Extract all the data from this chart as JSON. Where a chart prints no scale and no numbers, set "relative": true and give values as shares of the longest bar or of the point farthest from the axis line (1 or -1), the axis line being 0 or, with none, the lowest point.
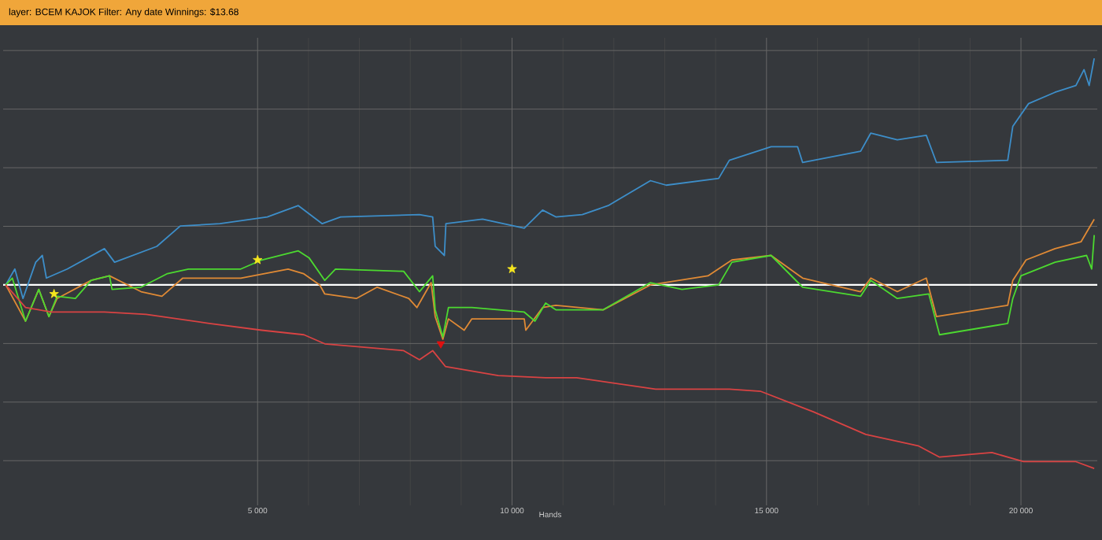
{
  "chart_data": {
    "type": "line",
    "title": "layer: BCEM KAJOK Filter: Any date Winnings: $13.68",
    "xlabel": "Hands",
    "relative": true,
    "grid": true,
    "xlim": [
      0,
      21500
    ],
    "xticks": [
      {
        "value": 5000,
        "label": "5 000"
      },
      {
        "value": 10000,
        "label": "10 000"
      },
      {
        "value": 15000,
        "label": "15 000"
      },
      {
        "value": 20000,
        "label": "20 000"
      }
    ],
    "ref_lines": [
      {
        "axis": "y",
        "value": 0,
        "color": "#ffffff"
      }
    ],
    "series": [
      {
        "color": "#3d8ec9",
        "x": [
          50,
          230,
          390,
          640,
          770,
          850,
          1260,
          1990,
          2190,
          3020,
          3480,
          4260,
          5190,
          5800,
          6270,
          6630,
          8180,
          8440,
          8490,
          8670,
          8700,
          9420,
          10240,
          10600,
          10860,
          11380,
          11890,
          12720,
          13030,
          14060,
          14270,
          15090,
          15610,
          15710,
          16850,
          17050,
          17570,
          18140,
          18340,
          19740,
          19840,
          20150,
          20670,
          21080,
          21240,
          21340,
          21440
        ],
        "values": [
          0,
          0.07,
          -0.06,
          0.1,
          0.13,
          0.03,
          0.07,
          0.16,
          0.1,
          0.17,
          0.26,
          0.27,
          0.3,
          0.35,
          0.27,
          0.3,
          0.31,
          0.3,
          0.17,
          0.13,
          0.27,
          0.29,
          0.25,
          0.33,
          0.3,
          0.31,
          0.35,
          0.46,
          0.44,
          0.47,
          0.55,
          0.61,
          0.61,
          0.54,
          0.59,
          0.67,
          0.64,
          0.66,
          0.54,
          0.55,
          0.7,
          0.8,
          0.85,
          0.88,
          0.95,
          0.88,
          1.0
        ]
      },
      {
        "color": "#e08a35",
        "x": [
          50,
          440,
          700,
          900,
          1060,
          1730,
          2090,
          2710,
          3120,
          3530,
          4670,
          5600,
          5900,
          6220,
          6320,
          6940,
          7350,
          7970,
          8130,
          8410,
          8490,
          8640,
          8750,
          9060,
          9210,
          10240,
          10270,
          10600,
          10860,
          11790,
          12720,
          13850,
          14320,
          15090,
          15710,
          16850,
          17050,
          17570,
          18140,
          18340,
          19740,
          19840,
          20100,
          20670,
          21180,
          21440
        ],
        "values": [
          0,
          -0.16,
          -0.02,
          -0.14,
          -0.06,
          0.02,
          0.04,
          -0.03,
          -0.05,
          0.03,
          0.03,
          0.07,
          0.05,
          0.0,
          -0.04,
          -0.06,
          -0.01,
          -0.06,
          -0.1,
          0.01,
          -0.14,
          -0.24,
          -0.15,
          -0.2,
          -0.15,
          -0.15,
          -0.2,
          -0.1,
          -0.09,
          -0.11,
          0.0,
          0.04,
          0.11,
          0.13,
          0.03,
          -0.03,
          0.03,
          -0.03,
          0.03,
          -0.14,
          -0.09,
          0.02,
          0.11,
          0.16,
          0.19,
          0.29
        ]
      },
      {
        "color": "#4cd930",
        "x": [
          50,
          180,
          440,
          700,
          900,
          1060,
          1420,
          1730,
          2090,
          2140,
          2710,
          3230,
          3640,
          4670,
          5080,
          5800,
          6010,
          6320,
          6530,
          7870,
          8180,
          8440,
          8490,
          8640,
          8750,
          9210,
          10240,
          10450,
          10660,
          10860,
          11790,
          12720,
          13340,
          14060,
          14320,
          15090,
          15710,
          16850,
          17050,
          17570,
          18190,
          18400,
          19740,
          19840,
          20000,
          20670,
          21290,
          21390,
          21440
        ],
        "values": [
          0,
          0.03,
          -0.16,
          -0.02,
          -0.14,
          -0.05,
          -0.06,
          0.02,
          0.04,
          -0.02,
          -0.01,
          0.05,
          0.07,
          0.07,
          0.11,
          0.15,
          0.12,
          0.02,
          0.07,
          0.06,
          -0.03,
          0.04,
          -0.11,
          -0.23,
          -0.1,
          -0.1,
          -0.12,
          -0.16,
          -0.08,
          -0.11,
          -0.11,
          0.01,
          -0.02,
          0.0,
          0.1,
          0.13,
          -0.01,
          -0.05,
          0.02,
          -0.06,
          -0.04,
          -0.22,
          -0.17,
          -0.06,
          0.04,
          0.1,
          0.13,
          0.07,
          0.22
        ]
      },
      {
        "color": "#d94343",
        "x": [
          50,
          440,
          950,
          1990,
          2810,
          4050,
          5080,
          5910,
          6320,
          7870,
          8180,
          8440,
          8690,
          9730,
          10660,
          11270,
          12820,
          14270,
          14890,
          15920,
          16950,
          17980,
          18400,
          19430,
          20050,
          21080,
          21440
        ],
        "values": [
          0,
          -0.1,
          -0.12,
          -0.12,
          -0.13,
          -0.17,
          -0.2,
          -0.22,
          -0.26,
          -0.29,
          -0.33,
          -0.29,
          -0.36,
          -0.4,
          -0.41,
          -0.41,
          -0.46,
          -0.46,
          -0.47,
          -0.56,
          -0.66,
          -0.71,
          -0.76,
          -0.74,
          -0.78,
          -0.78,
          -0.81
        ]
      },
      {
        "type": "scatter",
        "marker": "star",
        "color": "#f5e61e",
        "x": [
          1000,
          5000,
          10000
        ],
        "values": [
          -0.04,
          0.11,
          0.07
        ]
      },
      {
        "type": "scatter",
        "marker": "triangle",
        "color": "#e01010",
        "x": [
          8600
        ],
        "values": [
          -0.26
        ]
      }
    ]
  }
}
